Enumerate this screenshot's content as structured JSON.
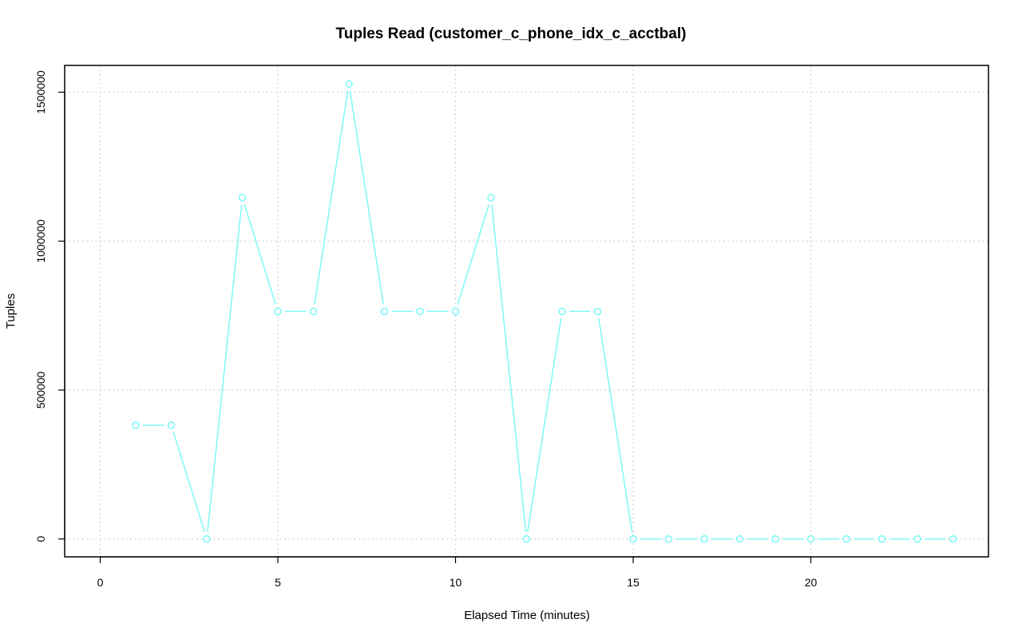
{
  "chart_data": {
    "type": "line",
    "title": "Tuples Read (customer_c_phone_idx_c_acctbal)",
    "xlabel": "Elapsed Time (minutes)",
    "ylabel": "Tuples",
    "xlim": [
      -1,
      25
    ],
    "ylim": [
      -60000,
      1590000
    ],
    "x_ticks": [
      0,
      5,
      10,
      15,
      20
    ],
    "x_tick_labels": [
      "0",
      "5",
      "10",
      "15",
      "20"
    ],
    "y_ticks": [
      0,
      500000,
      1000000,
      1500000
    ],
    "y_tick_labels": [
      "0",
      "500000",
      "1000000",
      "1500000"
    ],
    "grid": true,
    "color": "#7ff8f8",
    "series": [
      {
        "x": [
          1,
          2,
          3,
          4,
          5,
          6,
          7,
          8,
          9,
          10,
          11,
          12,
          13,
          14,
          15,
          16,
          17,
          18,
          19,
          20,
          21,
          22,
          23,
          24
        ],
        "values": [
          382000,
          382000,
          0,
          1146000,
          764000,
          764000,
          1528000,
          764000,
          764000,
          764000,
          1146000,
          0,
          764000,
          764000,
          0,
          0,
          0,
          0,
          0,
          0,
          0,
          0,
          0,
          0
        ]
      }
    ]
  }
}
